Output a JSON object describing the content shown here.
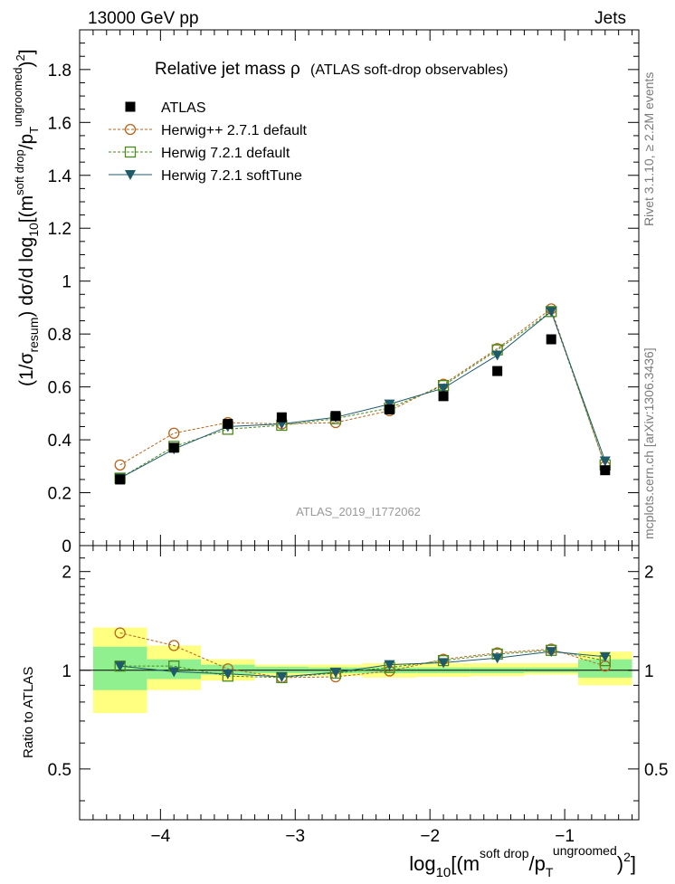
{
  "header": {
    "energy_label": "13000 GeV pp",
    "process_label": "Jets",
    "side_events": "Rivet 3.1.10, ≥ 2.2M events",
    "side_site": "mcplots.cern.ch [arXiv:1306.3436]",
    "watermark": "ATLAS_2019_I1772062"
  },
  "chart_data": [
    {
      "type": "scatter",
      "title": "Relative jet mass  ρ",
      "subtitle": "(ATLAS soft-drop observables)",
      "ylabel": "(1/σresum) dσ/d log10[(m soft drop / pT ungroomed)²]",
      "xlabel": "",
      "xlim": [
        -4.6,
        -0.45
      ],
      "ylim": [
        0,
        1.95
      ],
      "yticks": [
        "0",
        "0.2",
        "0.4",
        "0.6",
        "0.8",
        "1",
        "1.2",
        "1.4",
        "1.6",
        "1.8"
      ],
      "legend_position": "top-left",
      "x": [
        -4.3,
        -3.9,
        -3.5,
        -3.1,
        -2.7,
        -2.3,
        -1.9,
        -1.5,
        -1.1,
        -0.7
      ],
      "series": [
        {
          "name": "ATLAS",
          "color": "#000000",
          "marker": "square",
          "values": [
            0.25,
            0.37,
            0.46,
            0.485,
            0.49,
            0.515,
            0.565,
            0.66,
            0.78,
            0.285
          ]
        },
        {
          "name": "Herwig++ 2.7.1 default",
          "color": "#b8631a",
          "marker": "circle",
          "values": [
            0.305,
            0.425,
            0.465,
            0.46,
            0.465,
            0.51,
            0.61,
            0.745,
            0.895,
            0.3
          ]
        },
        {
          "name": "Herwig 7.2.1 default",
          "color": "#4a8a1a",
          "marker": "open-square",
          "values": [
            0.255,
            0.375,
            0.44,
            0.455,
            0.48,
            0.52,
            0.605,
            0.74,
            0.885,
            0.305
          ]
        },
        {
          "name": "Herwig 7.2.1 softTune",
          "color": "#1f5a6a",
          "marker": "triangle-down",
          "values": [
            0.255,
            0.365,
            0.45,
            0.46,
            0.485,
            0.535,
            0.595,
            0.72,
            0.885,
            0.32
          ]
        }
      ]
    },
    {
      "type": "line",
      "ylabel": "Ratio to ATLAS",
      "xlabel": "log10[(m soft drop / pT ungroomed)²]",
      "xlim": [
        -4.6,
        -0.45
      ],
      "ylim": [
        0.35,
        2.4
      ],
      "yscale": "log",
      "yticks": [
        "0.5",
        "1",
        "2"
      ],
      "xticks": [
        "−4",
        "−3",
        "−2",
        "−1"
      ],
      "x": [
        -4.3,
        -3.9,
        -3.5,
        -3.1,
        -2.7,
        -2.3,
        -1.9,
        -1.5,
        -1.1,
        -0.7
      ],
      "bins": [
        [
          -4.5,
          -4.1
        ],
        [
          -4.1,
          -3.7
        ],
        [
          -3.7,
          -3.3
        ],
        [
          -3.3,
          -2.9
        ],
        [
          -2.9,
          -2.5
        ],
        [
          -2.5,
          -2.1
        ],
        [
          -2.1,
          -1.7
        ],
        [
          -1.7,
          -1.3
        ],
        [
          -1.3,
          -0.9
        ],
        [
          -0.9,
          -0.5
        ]
      ],
      "band_outer": {
        "color": "#ffff80",
        "lo": [
          0.74,
          0.87,
          0.93,
          0.96,
          0.96,
          0.95,
          0.955,
          0.96,
          0.97,
          0.9
        ],
        "hi": [
          1.35,
          1.19,
          1.08,
          1.04,
          1.04,
          1.05,
          1.05,
          1.05,
          1.05,
          1.14
        ]
      },
      "band_inner": {
        "color": "#90f090",
        "lo": [
          0.87,
          0.94,
          0.97,
          0.98,
          0.98,
          0.98,
          0.98,
          0.98,
          0.985,
          0.95
        ],
        "hi": [
          1.18,
          1.08,
          1.04,
          1.025,
          1.02,
          1.02,
          1.02,
          1.02,
          1.02,
          1.08
        ]
      },
      "series": [
        {
          "name": "Herwig++ 2.7.1 default",
          "color": "#b8631a",
          "marker": "circle",
          "values": [
            1.3,
            1.19,
            1.01,
            0.95,
            0.955,
            0.995,
            1.08,
            1.13,
            1.16,
            1.03
          ]
        },
        {
          "name": "Herwig 7.2.1 default",
          "color": "#4a8a1a",
          "marker": "open-square",
          "values": [
            1.03,
            1.03,
            0.96,
            0.95,
            0.98,
            1.02,
            1.07,
            1.12,
            1.15,
            1.07
          ]
        },
        {
          "name": "Herwig 7.2.1 softTune",
          "color": "#1f5a6a",
          "marker": "triangle-down",
          "values": [
            1.03,
            0.99,
            0.975,
            0.955,
            0.985,
            1.04,
            1.055,
            1.09,
            1.14,
            1.1
          ]
        }
      ]
    }
  ]
}
